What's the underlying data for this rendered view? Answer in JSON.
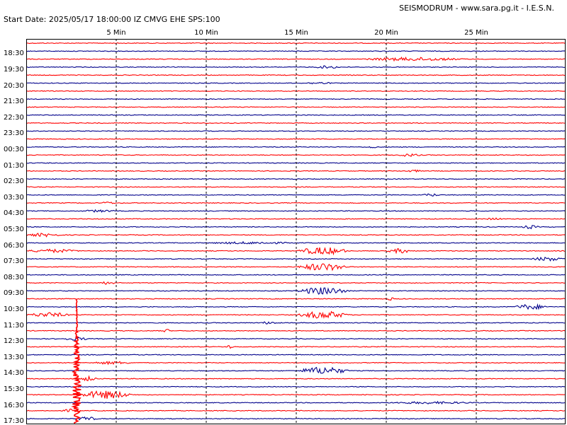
{
  "header": {
    "credit": "SEISMODRUM - www.sara.pg.it - I.E.S.N.",
    "station_info": "Start Date: 2025/05/17 18:00:00 IZ CMVG EHE SPS:100"
  },
  "minute_axis": [
    {
      "minute": 5,
      "label": "5 Min"
    },
    {
      "minute": 10,
      "label": "10 Min"
    },
    {
      "minute": 15,
      "label": "15 Min"
    },
    {
      "minute": 20,
      "label": "20 Min"
    },
    {
      "minute": 25,
      "label": "25 Min"
    }
  ],
  "time_labels": [
    "18:30",
    "19:30",
    "20:30",
    "21:30",
    "22:30",
    "23:30",
    "00:30",
    "01:30",
    "02:30",
    "03:30",
    "04:30",
    "05:30",
    "06:30",
    "07:30",
    "08:30",
    "09:30",
    "10:30",
    "11:30",
    "12:30",
    "13:30",
    "14:30",
    "15:30",
    "16:30",
    "17:30"
  ],
  "colors": {
    "red_trace": "#ff0000",
    "blue_trace": "#00008b",
    "grid": "#000000",
    "background": "#ffffff"
  },
  "chart_data": {
    "type": "line",
    "title": "",
    "x_axis": {
      "unit_label": "Min",
      "range": [
        0,
        30
      ]
    },
    "trace_count": 48,
    "trace_minutes": 30,
    "events": [
      {
        "trace": 2,
        "start": 18.5,
        "end": 24.5,
        "level": 0.5
      },
      {
        "trace": 3,
        "start": 16.0,
        "end": 17.5,
        "level": 0.4
      },
      {
        "trace": 5,
        "start": 15.5,
        "end": 17.0,
        "level": 0.3
      },
      {
        "trace": 13,
        "start": 19.0,
        "end": 19.5,
        "level": 0.4
      },
      {
        "trace": 14,
        "start": 20.5,
        "end": 22.0,
        "level": 0.4
      },
      {
        "trace": 16,
        "start": 21.0,
        "end": 22.0,
        "level": 0.3
      },
      {
        "trace": 19,
        "start": 22.0,
        "end": 23.0,
        "level": 0.4
      },
      {
        "trace": 20,
        "start": 4.0,
        "end": 5.0,
        "level": 0.3
      },
      {
        "trace": 21,
        "start": 3.0,
        "end": 5.0,
        "level": 0.3
      },
      {
        "trace": 22,
        "start": 25.5,
        "end": 26.5,
        "level": 0.3
      },
      {
        "trace": 23,
        "start": 27.5,
        "end": 28.5,
        "level": 0.5
      },
      {
        "trace": 24,
        "start": 0.0,
        "end": 2.0,
        "level": 0.5
      },
      {
        "trace": 25,
        "start": 10.0,
        "end": 15.0,
        "level": 0.3
      },
      {
        "trace": 26,
        "start": 0.0,
        "end": 3.0,
        "level": 0.5
      },
      {
        "trace": 26,
        "start": 15.0,
        "end": 18.0,
        "level": 1.2
      },
      {
        "trace": 26,
        "start": 20.0,
        "end": 21.5,
        "level": 0.7
      },
      {
        "trace": 27,
        "start": 28.0,
        "end": 30.0,
        "level": 0.6
      },
      {
        "trace": 28,
        "start": 15.0,
        "end": 18.0,
        "level": 1.2
      },
      {
        "trace": 30,
        "start": 4.0,
        "end": 5.0,
        "level": 0.4
      },
      {
        "trace": 31,
        "start": 15.0,
        "end": 18.0,
        "level": 1.2
      },
      {
        "trace": 32,
        "start": 20.0,
        "end": 20.5,
        "level": 0.4
      },
      {
        "trace": 33,
        "start": 27.0,
        "end": 29.0,
        "level": 0.8
      },
      {
        "trace": 34,
        "start": 0.0,
        "end": 2.5,
        "level": 0.7
      },
      {
        "trace": 34,
        "start": 15.0,
        "end": 18.0,
        "level": 1.2
      },
      {
        "trace": 35,
        "start": 13.0,
        "end": 14.0,
        "level": 0.4
      },
      {
        "trace": 36,
        "start": 7.5,
        "end": 8.0,
        "level": 0.6
      },
      {
        "trace": 37,
        "start": 2.0,
        "end": 3.5,
        "level": 0.5
      },
      {
        "trace": 38,
        "start": 11.0,
        "end": 11.5,
        "level": 0.5
      },
      {
        "trace": 40,
        "start": 3.5,
        "end": 6.0,
        "level": 0.4
      },
      {
        "trace": 41,
        "start": 15.0,
        "end": 18.0,
        "level": 1.2
      },
      {
        "trace": 42,
        "start": 3.0,
        "end": 4.0,
        "level": 0.7
      },
      {
        "trace": 44,
        "start": 2.8,
        "end": 6.0,
        "level": 1.3
      },
      {
        "trace": 45,
        "start": 20.0,
        "end": 25.0,
        "level": 0.3
      },
      {
        "trace": 46,
        "start": 2.0,
        "end": 3.0,
        "level": 0.5
      },
      {
        "trace": 47,
        "start": 2.5,
        "end": 4.0,
        "level": 0.6
      }
    ],
    "large_quake": {
      "trace": 44,
      "minute": 2.8,
      "amplitude_traces": 12
    }
  }
}
